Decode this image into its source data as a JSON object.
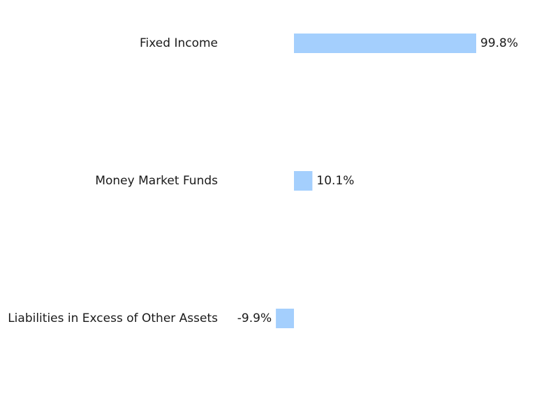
{
  "chart_data": {
    "type": "bar",
    "orientation": "horizontal",
    "categories": [
      "Fixed Income",
      "Money Market Funds",
      "Liabilities in Excess of Other Assets"
    ],
    "values": [
      99.8,
      10.1,
      -9.9
    ],
    "value_labels": [
      "99.8%",
      "10.1%",
      "-9.9%"
    ],
    "unit": "%",
    "title": "",
    "xlabel": "",
    "ylabel": "",
    "grid": false,
    "legend": "none",
    "colors": {
      "bar": "#a4cffd",
      "text": "#1a1a1a",
      "background": "#ffffff"
    }
  }
}
